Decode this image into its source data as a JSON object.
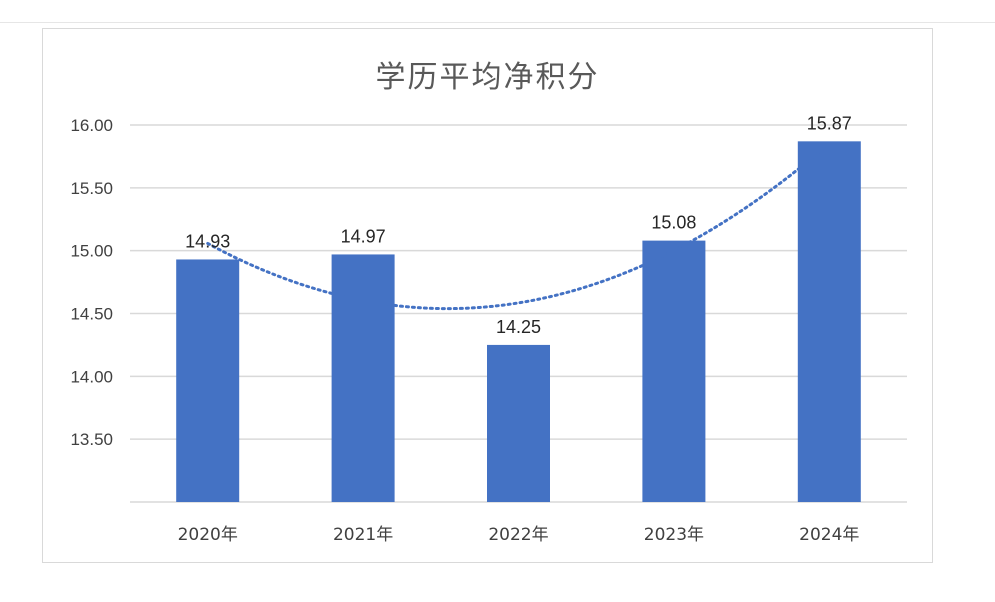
{
  "chart_data": {
    "type": "bar",
    "title": "学历平均净积分",
    "categories": [
      "2020年",
      "2021年",
      "2022年",
      "2023年",
      "2024年"
    ],
    "values": [
      14.93,
      14.97,
      14.25,
      15.08,
      15.87
    ],
    "data_labels": [
      "14.93",
      "14.97",
      "14.25",
      "15.08",
      "15.87"
    ],
    "y_ticks": [
      "13.50",
      "14.00",
      "14.50",
      "15.00",
      "15.50",
      "16.00"
    ],
    "ylim": [
      13.0,
      16.0
    ],
    "grid": true,
    "trendline": {
      "type": "polynomial",
      "style": "dotted"
    },
    "bar_color": "#4472c4",
    "gridline_color": "#d9d9d9"
  }
}
